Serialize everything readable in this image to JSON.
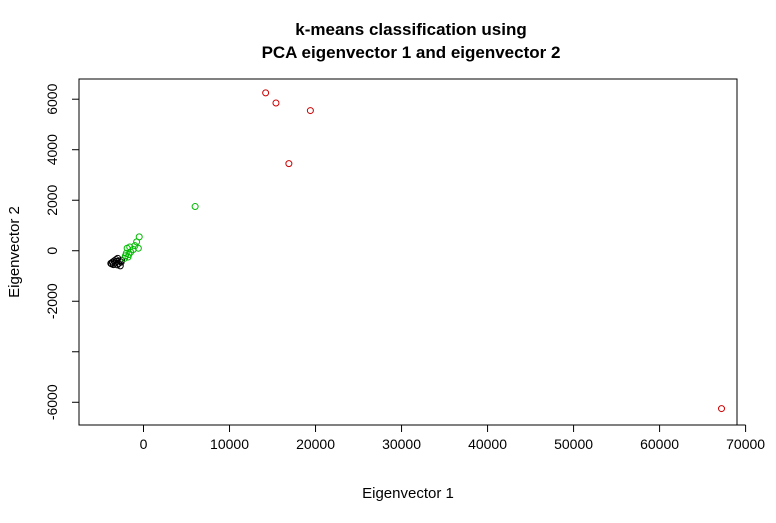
{
  "chart_data": {
    "type": "scatter",
    "title_line1": "k-means classification using",
    "title_line2": "PCA eigenvector 1 and eigenvector 2",
    "xlabel": "Eigenvector 1",
    "ylabel": "Eigenvector 2",
    "xlim": [
      -7500,
      69000
    ],
    "ylim": [
      -6900,
      6800
    ],
    "x_ticks": [
      {
        "value": 0,
        "label": "0"
      },
      {
        "value": 10000,
        "label": "10000"
      },
      {
        "value": 20000,
        "label": "20000"
      },
      {
        "value": 30000,
        "label": "30000"
      },
      {
        "value": 40000,
        "label": "40000"
      },
      {
        "value": 50000,
        "label": "50000"
      },
      {
        "value": 60000,
        "label": "60000"
      },
      {
        "value": 70000,
        "label": "70000"
      }
    ],
    "y_ticks": [
      {
        "value": -6000,
        "label": "-6000"
      },
      {
        "value": -4000,
        "label": ""
      },
      {
        "value": -2000,
        "label": "-2000"
      },
      {
        "value": 0,
        "label": "0"
      },
      {
        "value": 2000,
        "label": "2000"
      },
      {
        "value": 4000,
        "label": "4000"
      },
      {
        "value": 6000,
        "label": "6000"
      }
    ],
    "grid": false,
    "series": [
      {
        "color": "#000000",
        "points": [
          [
            -3800,
            -500
          ],
          [
            -3600,
            -450
          ],
          [
            -3500,
            -550
          ],
          [
            -3400,
            -400
          ],
          [
            -3300,
            -480
          ],
          [
            -3200,
            -350
          ],
          [
            -3100,
            -420
          ],
          [
            -3000,
            -300
          ],
          [
            -2900,
            -500
          ],
          [
            -2800,
            -400
          ],
          [
            -2700,
            -600
          ],
          [
            -2600,
            -450
          ],
          [
            -2550,
            -380
          ],
          [
            -3700,
            -520
          ],
          [
            -3050,
            -560
          ]
        ]
      },
      {
        "color": "#00bb00",
        "points": [
          [
            -2200,
            -300
          ],
          [
            -2100,
            -200
          ],
          [
            -2000,
            -100
          ],
          [
            -1900,
            100
          ],
          [
            -1800,
            -250
          ],
          [
            -1700,
            -150
          ],
          [
            -1600,
            150
          ],
          [
            -1500,
            -50
          ],
          [
            -1200,
            50
          ],
          [
            -1000,
            200
          ],
          [
            -800,
            350
          ],
          [
            -600,
            100
          ],
          [
            -500,
            550
          ],
          [
            6000,
            1750
          ]
        ]
      },
      {
        "color": "#cc0000",
        "points": [
          [
            14200,
            6250
          ],
          [
            15400,
            5850
          ],
          [
            19400,
            5550
          ],
          [
            16900,
            3450
          ],
          [
            67200,
            -6250
          ]
        ]
      }
    ]
  }
}
